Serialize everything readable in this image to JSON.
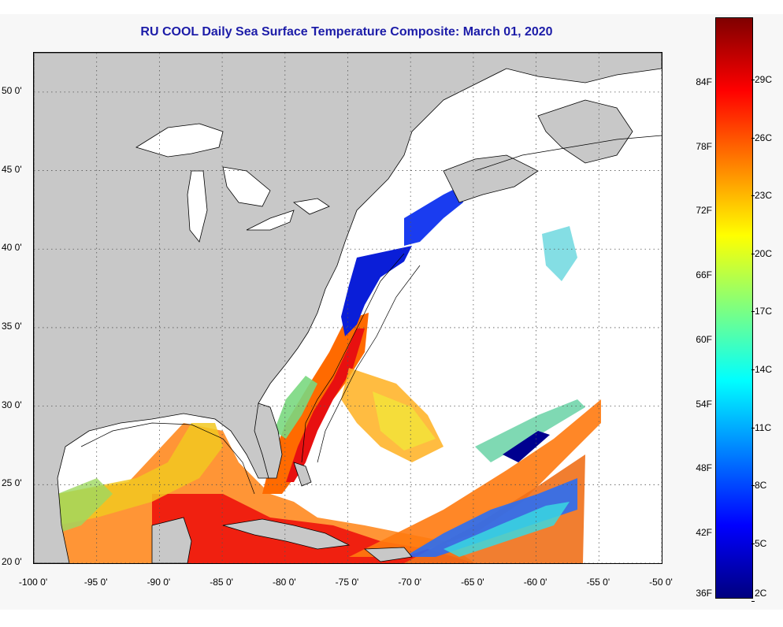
{
  "title": "RU COOL Daily Sea Surface Temperature Composite:  March 01, 2020",
  "map": {
    "lon_range": [
      -100,
      -50
    ],
    "lat_range": [
      20,
      52.5
    ],
    "lon_ticks": [
      {
        "value": -100,
        "label": "-100 0'"
      },
      {
        "value": -95,
        "label": "-95 0'"
      },
      {
        "value": -90,
        "label": "-90 0'"
      },
      {
        "value": -85,
        "label": "-85 0'"
      },
      {
        "value": -80,
        "label": "-80 0'"
      },
      {
        "value": -75,
        "label": "-75 0'"
      },
      {
        "value": -70,
        "label": "-70 0'"
      },
      {
        "value": -65,
        "label": "-65 0'"
      },
      {
        "value": -60,
        "label": "-60 0'"
      },
      {
        "value": -55,
        "label": "-55 0'"
      },
      {
        "value": -50,
        "label": "-50 0'"
      }
    ],
    "lat_ticks": [
      {
        "value": 50,
        "label": "50 0'"
      },
      {
        "value": 45,
        "label": "45 0'"
      },
      {
        "value": 40,
        "label": "40 0'"
      },
      {
        "value": 35,
        "label": "35 0'"
      },
      {
        "value": 30,
        "label": "30 0'"
      },
      {
        "value": 25,
        "label": "25 0'"
      },
      {
        "value": 20,
        "label": "20 0'"
      }
    ],
    "land_color": "#c8c8c8",
    "no_data_color": "#ffffff"
  },
  "colorbar": {
    "min_f": 36,
    "max_f": 90,
    "f_labels": [
      "84F",
      "78F",
      "72F",
      "66F",
      "60F",
      "54F",
      "48F",
      "42F",
      "36F"
    ],
    "c_labels": [
      "29C",
      "26C",
      "23C",
      "20C",
      "17C",
      "14C",
      "11C",
      "8C",
      "5C",
      "2C"
    ],
    "colors": [
      "#00007f",
      "#0000ff",
      "#007fff",
      "#00ffff",
      "#7fff7f",
      "#ffff00",
      "#ff7f00",
      "#ff0000",
      "#7f0000"
    ]
  }
}
